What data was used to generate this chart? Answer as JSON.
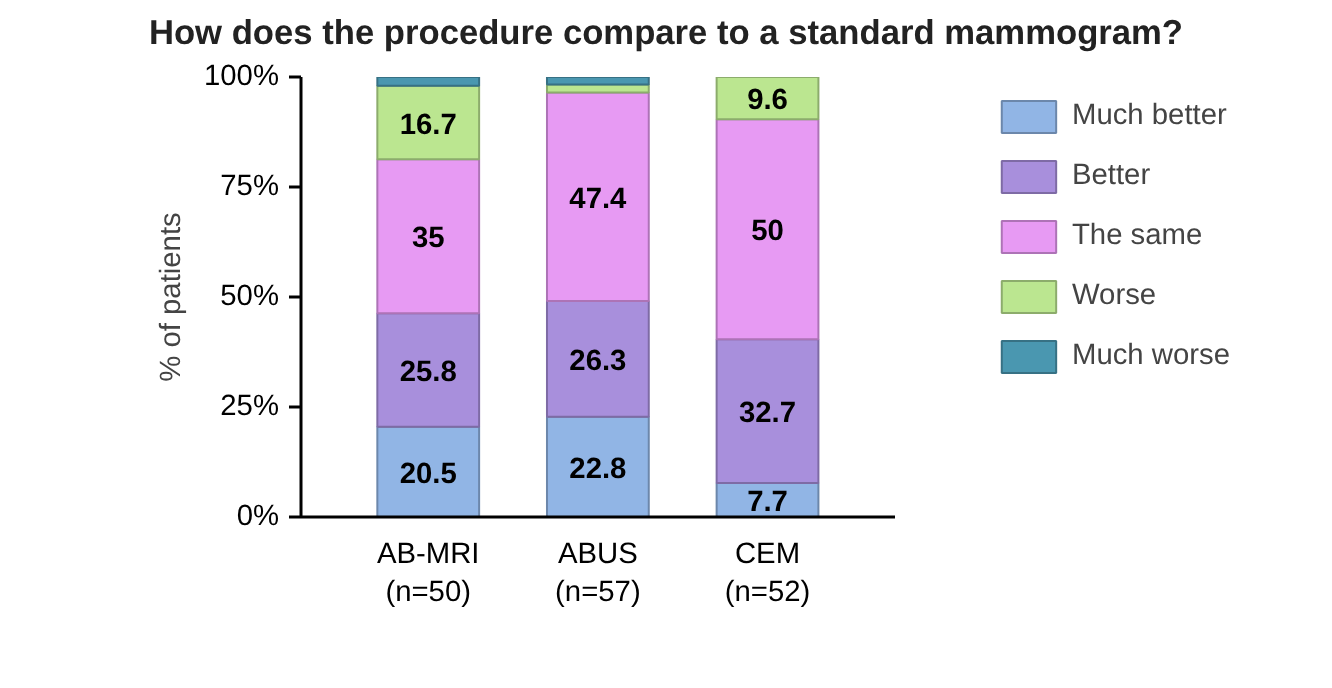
{
  "chart_data": {
    "type": "bar",
    "stacked": true,
    "title": "How does the procedure compare to a standard mammogram?",
    "ylabel": "% of patients",
    "categories": [
      "AB-MRI\n(n=50)",
      "ABUS\n(n=57)",
      "CEM\n(n=52)"
    ],
    "series": [
      {
        "name": "Much better",
        "color": "#91b5e5",
        "values": [
          20.5,
          22.8,
          7.7
        ],
        "value_labels": [
          "20.5",
          "22.8",
          "7.7"
        ]
      },
      {
        "name": "Better",
        "color": "#a88fdc",
        "values": [
          25.8,
          26.3,
          32.7
        ],
        "value_labels": [
          "25.8",
          "26.3",
          "32.7"
        ]
      },
      {
        "name": "The same",
        "color": "#e79af3",
        "values": [
          35,
          47.4,
          50
        ],
        "value_labels": [
          "35",
          "47.4",
          "50"
        ]
      },
      {
        "name": "Worse",
        "color": "#bbe690",
        "values": [
          16.7,
          1.8,
          9.6
        ],
        "value_labels": [
          "16.7",
          null,
          "9.6"
        ]
      },
      {
        "name": "Much worse",
        "color": "#4a97b0",
        "values": [
          2.0,
          1.7,
          0
        ],
        "value_labels": [
          null,
          null,
          null
        ]
      }
    ],
    "ylim": [
      0,
      100
    ],
    "yticks": [
      {
        "value": 0,
        "label": "0%"
      },
      {
        "value": 25,
        "label": "25%"
      },
      {
        "value": 50,
        "label": "50%"
      },
      {
        "value": 75,
        "label": "75%"
      },
      {
        "value": 100,
        "label": "100%"
      }
    ],
    "grid": false,
    "legend": "right"
  }
}
